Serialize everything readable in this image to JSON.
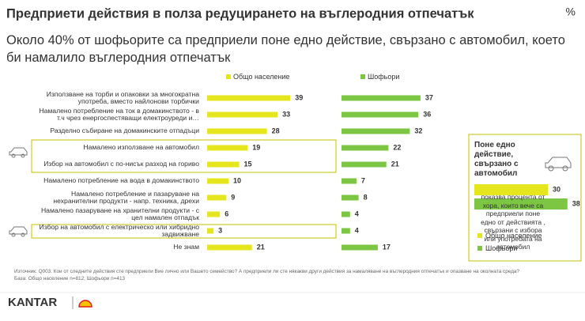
{
  "header": {
    "title": "Предприети действия в полза редуцирането на въглеродния отпечатък",
    "unit": "%",
    "subtitle": "Около 40% от шофьорите са предприели поне едно действие, свързано с автомобил, което би намалило въглеродния отпечатък"
  },
  "chart_data": [
    {
      "type": "hbar",
      "categories": [
        "Използване на торби и опаковки за многократна употреба, вместо найлонови торбички",
        "Намалено потребление на ток в домакинството - в т.ч чрез енергоспестяващи електроуреди и…",
        "Разделно събиране на домакинските отпадъци",
        "Намалено използване на автомобил",
        "Избор на автомобил с по-нисък разход на гориво",
        "Намалено потребление на вода в домакинството",
        "Намалено потребление и пазаруване на нехранителни продукти - напр. техника, дрехи",
        "Намалено пазаруване на хранителни продукти - с цел намален отпадък",
        "Избор на автомобил с електрическо или хибридно задвижване",
        "Не знам"
      ],
      "series": [
        {
          "name": "Общо население",
          "color": "#e6e61e",
          "values": [
            39,
            33,
            28,
            19,
            15,
            10,
            9,
            6,
            3,
            21
          ]
        },
        {
          "name": "Шофьори",
          "color": "#7cc644",
          "values": [
            37,
            36,
            32,
            22,
            21,
            7,
            8,
            4,
            4,
            17
          ]
        }
      ]
    },
    {
      "type": "hbar",
      "title": "Поне едно действие, свързано с автомобил",
      "note": "показва процента от хора, които вече са предприели поне едно от действията , свързани с избора или употребата на автомобил",
      "series": [
        {
          "name": "Общо население",
          "color": "#e6e61e",
          "values": [
            30
          ]
        },
        {
          "name": "Шофьори",
          "color": "#7cc644",
          "values": [
            38
          ]
        }
      ]
    }
  ],
  "footer": {
    "source": "Източник: Q003. Кои от следните действия сте предприели Вие лично или Вашето семейство? А предприели ли сте някакви други действия за намаляване на въглеродния отпечатък и опазване на околната среда?",
    "base": "База: Общо население n=812; Шофьори n=413",
    "brand": "KANTAR"
  }
}
